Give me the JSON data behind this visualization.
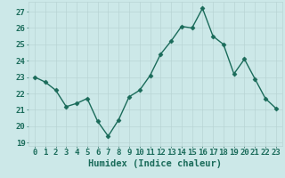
{
  "x": [
    0,
    1,
    2,
    3,
    4,
    5,
    6,
    7,
    8,
    9,
    10,
    11,
    12,
    13,
    14,
    15,
    16,
    17,
    18,
    19,
    20,
    21,
    22,
    23
  ],
  "y": [
    23.0,
    22.7,
    22.2,
    21.2,
    21.4,
    21.7,
    20.3,
    19.4,
    20.4,
    21.8,
    22.2,
    23.1,
    24.4,
    25.2,
    26.1,
    26.0,
    27.2,
    25.5,
    25.0,
    23.2,
    24.1,
    22.9,
    21.7,
    21.1
  ],
  "line_color": "#1a6b5a",
  "marker": "D",
  "marker_size": 2.5,
  "line_width": 1.0,
  "bg_color": "#cce8e8",
  "grid_color": "#b8d4d4",
  "xlabel": "Humidex (Indice chaleur)",
  "ylim": [
    18.8,
    27.6
  ],
  "yticks": [
    19,
    20,
    21,
    22,
    23,
    24,
    25,
    26,
    27
  ],
  "xticks": [
    0,
    1,
    2,
    3,
    4,
    5,
    6,
    7,
    8,
    9,
    10,
    11,
    12,
    13,
    14,
    15,
    16,
    17,
    18,
    19,
    20,
    21,
    22,
    23
  ],
  "tick_label_size": 6.5,
  "xlabel_size": 7.5
}
